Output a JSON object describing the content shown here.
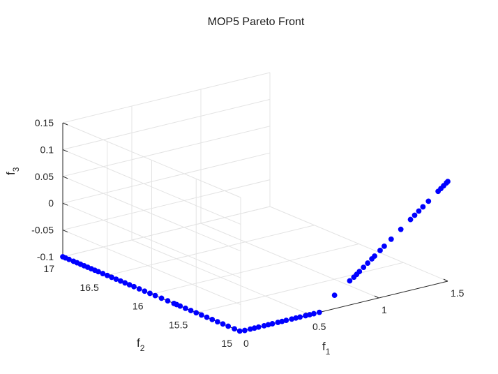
{
  "chart_data": {
    "type": "scatter",
    "projection": "3d",
    "title": "MOP5 Pareto Front",
    "xlabel": "f",
    "xlabel_sub": "1",
    "ylabel": "f",
    "ylabel_sub": "2",
    "zlabel": "f",
    "zlabel_sub": "3",
    "xlim": [
      0,
      1.5
    ],
    "ylim": [
      15,
      17
    ],
    "zlim": [
      -0.1,
      0.15
    ],
    "x_ticks": [
      "0",
      "0.5",
      "1",
      "1.5"
    ],
    "y_ticks": [
      "15",
      "15.5",
      "16",
      "16.5",
      "17"
    ],
    "z_ticks": [
      "-0.1",
      "-0.05",
      "0",
      "0.05",
      "0.1",
      "0.15"
    ],
    "grid": true,
    "marker_color": "#0000ff",
    "points": [
      [
        0.0,
        17.0,
        -0.1
      ],
      [
        0.0,
        16.97,
        -0.1
      ],
      [
        0.0,
        16.93,
        -0.1
      ],
      [
        0.0,
        16.88,
        -0.1
      ],
      [
        0.0,
        16.84,
        -0.1
      ],
      [
        0.0,
        16.8,
        -0.1
      ],
      [
        0.0,
        16.76,
        -0.1
      ],
      [
        0.0,
        16.72,
        -0.1
      ],
      [
        0.0,
        16.68,
        -0.1
      ],
      [
        0.0,
        16.64,
        -0.1
      ],
      [
        0.0,
        16.6,
        -0.1
      ],
      [
        0.0,
        16.55,
        -0.1
      ],
      [
        0.0,
        16.5,
        -0.1
      ],
      [
        0.0,
        16.45,
        -0.1
      ],
      [
        0.0,
        16.4,
        -0.1
      ],
      [
        0.0,
        16.35,
        -0.1
      ],
      [
        0.0,
        16.3,
        -0.1
      ],
      [
        0.0,
        16.25,
        -0.1
      ],
      [
        0.0,
        16.2,
        -0.1
      ],
      [
        0.0,
        16.14,
        -0.1
      ],
      [
        0.0,
        16.08,
        -0.1
      ],
      [
        0.0,
        16.02,
        -0.1
      ],
      [
        0.0,
        15.96,
        -0.1
      ],
      [
        0.0,
        15.89,
        -0.1
      ],
      [
        0.0,
        15.82,
        -0.1
      ],
      [
        0.0,
        15.75,
        -0.1
      ],
      [
        0.0,
        15.72,
        -0.1
      ],
      [
        0.0,
        15.68,
        -0.1
      ],
      [
        0.0,
        15.62,
        -0.1
      ],
      [
        0.0,
        15.56,
        -0.1
      ],
      [
        0.0,
        15.5,
        -0.1
      ],
      [
        0.0,
        15.44,
        -0.1
      ],
      [
        0.0,
        15.38,
        -0.1
      ],
      [
        0.0,
        15.32,
        -0.1
      ],
      [
        0.0,
        15.26,
        -0.1
      ],
      [
        0.0,
        15.2,
        -0.1
      ],
      [
        0.0,
        15.14,
        -0.1
      ],
      [
        0.0,
        15.07,
        -0.1
      ],
      [
        0.0,
        15.01,
        -0.1
      ],
      [
        0.03,
        15.0,
        -0.1
      ],
      [
        0.07,
        15.0,
        -0.1
      ],
      [
        0.1,
        15.0,
        -0.1
      ],
      [
        0.13,
        15.0,
        -0.1
      ],
      [
        0.17,
        15.0,
        -0.1
      ],
      [
        0.2,
        15.0,
        -0.1
      ],
      [
        0.23,
        15.0,
        -0.1
      ],
      [
        0.27,
        15.0,
        -0.1
      ],
      [
        0.3,
        15.0,
        -0.1
      ],
      [
        0.33,
        15.0,
        -0.1
      ],
      [
        0.37,
        15.0,
        -0.1
      ],
      [
        0.4,
        15.0,
        -0.1
      ],
      [
        0.43,
        15.0,
        -0.1
      ],
      [
        0.47,
        15.0,
        -0.1
      ],
      [
        0.5,
        15.0,
        -0.1
      ],
      [
        0.53,
        15.0,
        -0.1
      ],
      [
        0.57,
        15.0,
        -0.1
      ],
      [
        0.68,
        15.0,
        -0.075
      ],
      [
        0.79,
        15.0,
        -0.055
      ],
      [
        0.82,
        15.0,
        -0.05
      ],
      [
        0.84,
        15.0,
        -0.046
      ],
      [
        0.86,
        15.0,
        -0.042
      ],
      [
        0.89,
        15.0,
        -0.036
      ],
      [
        0.92,
        15.0,
        -0.03
      ],
      [
        0.95,
        15.0,
        -0.024
      ],
      [
        0.97,
        15.0,
        -0.02
      ],
      [
        1.01,
        15.0,
        -0.012
      ],
      [
        1.04,
        15.0,
        -0.006
      ],
      [
        1.09,
        15.0,
        0.004
      ],
      [
        1.16,
        15.0,
        0.018
      ],
      [
        1.23,
        15.0,
        0.032
      ],
      [
        1.26,
        15.0,
        0.038
      ],
      [
        1.29,
        15.0,
        0.044
      ],
      [
        1.32,
        15.0,
        0.05
      ],
      [
        1.36,
        15.0,
        0.058
      ],
      [
        1.43,
        15.0,
        0.072
      ],
      [
        1.45,
        15.0,
        0.076
      ],
      [
        1.47,
        15.0,
        0.08
      ],
      [
        1.49,
        15.0,
        0.084
      ],
      [
        1.5,
        15.0,
        0.086
      ]
    ]
  }
}
